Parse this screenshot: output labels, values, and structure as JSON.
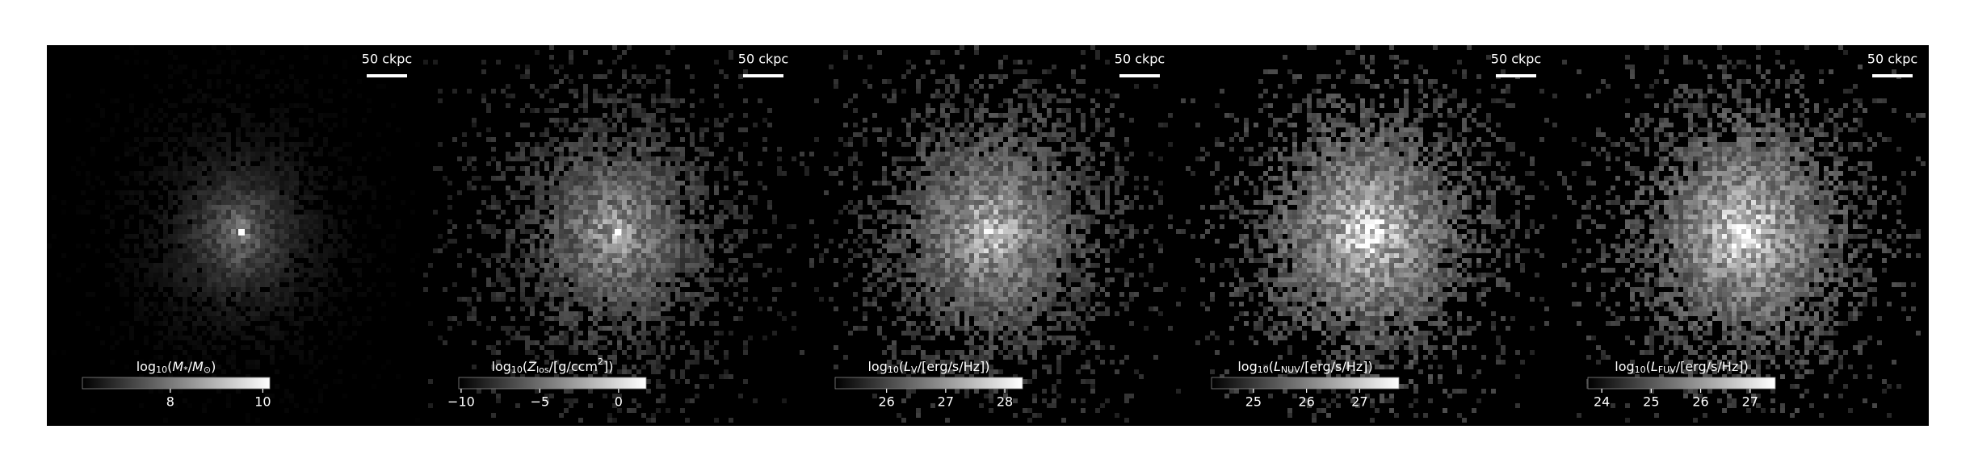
{
  "panels": [
    {
      "scale_bar": "50 ckpc",
      "colorbar": {
        "label_parts": [
          [
            "log",
            ""
          ],
          [
            "10",
            "sub"
          ],
          [
            "(",
            ""
          ],
          [
            "M",
            "it"
          ],
          [
            "*",
            "sub"
          ],
          [
            "/",
            ""
          ],
          [
            "M",
            "it"
          ],
          [
            "⊙",
            "sub"
          ],
          [
            ")",
            ""
          ]
        ],
        "lim": [
          6.1,
          10.15
        ],
        "ticks": [
          8,
          10
        ]
      }
    },
    {
      "scale_bar": "50 ckpc",
      "colorbar": {
        "label_parts": [
          [
            "log",
            ""
          ],
          [
            "10",
            "sub"
          ],
          [
            "(",
            ""
          ],
          [
            "Z",
            "it"
          ],
          [
            "los",
            "sub"
          ],
          [
            "/[g/ccm",
            ""
          ],
          [
            "2",
            "sup"
          ],
          [
            "])",
            ""
          ]
        ],
        "lim": [
          -10.15,
          1.75
        ],
        "ticks": [
          {
            "value": -10,
            "label": "−10"
          },
          {
            "value": -5,
            "label": "−5"
          },
          0
        ]
      }
    },
    {
      "scale_bar": "50 ckpc",
      "colorbar": {
        "label_parts": [
          [
            "log",
            ""
          ],
          [
            "10",
            "sub"
          ],
          [
            "(",
            ""
          ],
          [
            "L",
            "it"
          ],
          [
            "V",
            "sub"
          ],
          [
            "/[erg/s/Hz])",
            ""
          ]
        ],
        "lim": [
          25.13,
          28.3
        ],
        "ticks": [
          26,
          27,
          28
        ]
      }
    },
    {
      "scale_bar": "50 ckpc",
      "colorbar": {
        "label_parts": [
          [
            "log",
            ""
          ],
          [
            "10",
            "sub"
          ],
          [
            "(",
            ""
          ],
          [
            "L",
            "it"
          ],
          [
            "NUV",
            "sub"
          ],
          [
            "/[erg/s/Hz])",
            ""
          ]
        ],
        "lim": [
          24.21,
          27.74
        ],
        "ticks": [
          25,
          26,
          27
        ]
      }
    },
    {
      "scale_bar": "50 ckpc",
      "colorbar": {
        "label_parts": [
          [
            "log",
            ""
          ],
          [
            "10",
            "sub"
          ],
          [
            "(",
            ""
          ],
          [
            "L",
            "it"
          ],
          [
            "FUV",
            "sub"
          ],
          [
            "/[erg/s/Hz])",
            ""
          ]
        ],
        "lim": [
          23.72,
          27.51
        ],
        "ticks": [
          24,
          25,
          26,
          27
        ]
      }
    }
  ]
}
